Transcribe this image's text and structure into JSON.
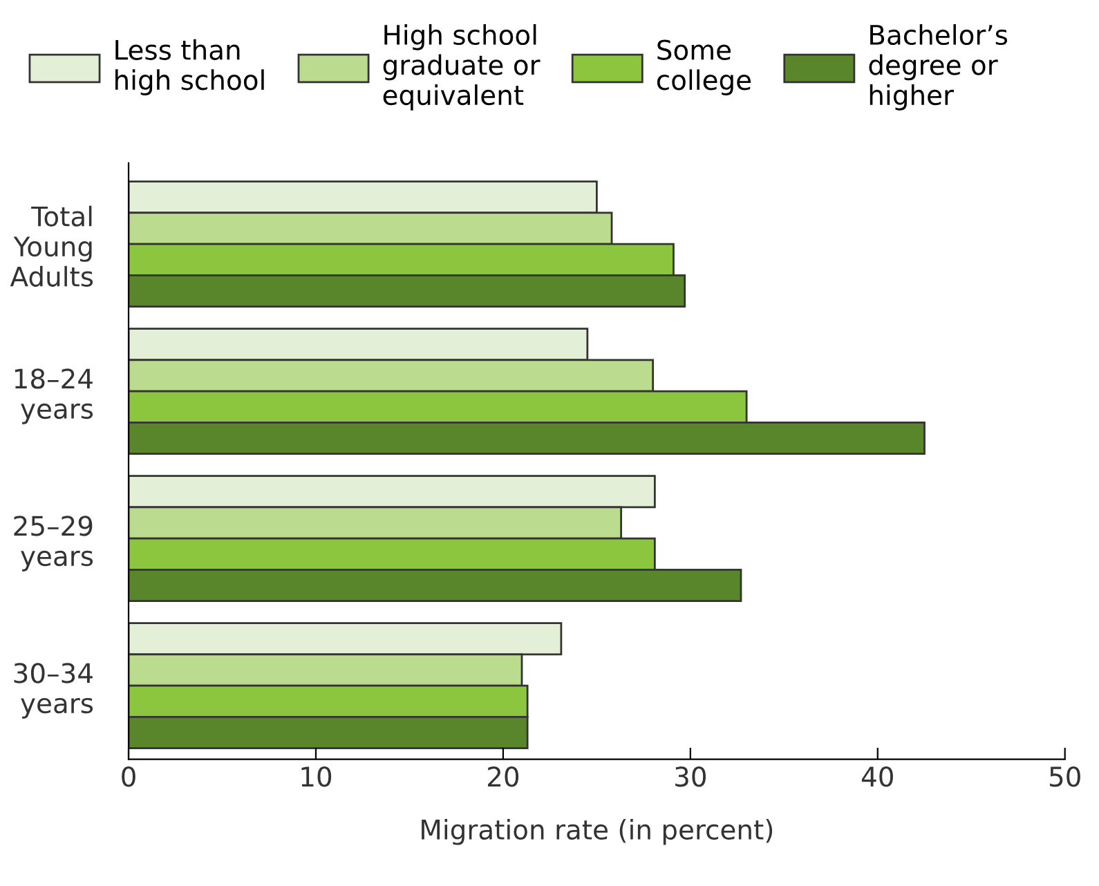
{
  "chart_data": {
    "type": "bar",
    "orientation": "horizontal",
    "xlabel": "Migration rate (in percent)",
    "categories": [
      "Total\nYoung\nAdults",
      "18–24\nyears",
      "25–29\nyears",
      "30–34\nyears"
    ],
    "series": [
      {
        "name": "Less than\nhigh school",
        "color": "#e3efd6",
        "values": [
          25.0,
          24.5,
          28.1,
          23.1
        ]
      },
      {
        "name": "High school\ngraduate or\nequivalent",
        "color": "#bbdb8e",
        "values": [
          25.8,
          28.0,
          26.3,
          21.0
        ]
      },
      {
        "name": "Some\ncollege",
        "color": "#8cc63f",
        "values": [
          29.1,
          33.0,
          28.1,
          21.3
        ]
      },
      {
        "name": "Bachelor’s\ndegree or\nhigher",
        "color": "#5a862b",
        "values": [
          29.7,
          42.5,
          32.7,
          21.3
        ]
      }
    ],
    "xlim": [
      0,
      50
    ],
    "xticks": [
      0,
      10,
      20,
      30,
      40,
      50
    ],
    "grid": false,
    "legend": "top"
  }
}
